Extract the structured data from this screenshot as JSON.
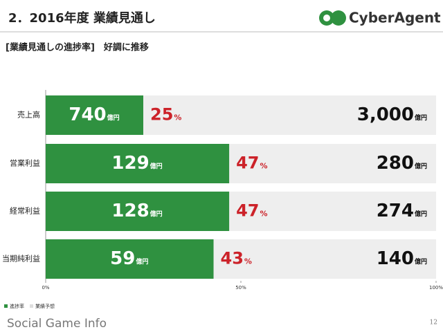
{
  "header": {
    "title": "2．2016年度 業績見通し",
    "subtitle": "[業績見通しの進捗率]　好調に推移",
    "logo": "CyberAgent",
    "footer": "Social Game Info",
    "page": "12"
  },
  "chart_data": {
    "type": "bar",
    "orientation": "horizontal",
    "categories": [
      "売上高",
      "営業利益",
      "経常利益",
      "当期純利益"
    ],
    "series": [
      {
        "name": "進捗率",
        "color": "#2f9140",
        "values": [
          25,
          47,
          47,
          43
        ]
      },
      {
        "name": "業績予想",
        "color": "#eeeeee",
        "values": [
          100,
          100,
          100,
          100
        ]
      }
    ],
    "value_unit": "%",
    "value_color": "#cc2229",
    "actuals": [
      740,
      129,
      128,
      59
    ],
    "forecasts": [
      3000,
      280,
      274,
      140
    ],
    "forecast_labels": [
      "3,000",
      "280",
      "274",
      "140"
    ],
    "amount_unit": "億円",
    "xlim": [
      0,
      100
    ],
    "xticks": [
      {
        "value": 0,
        "label": "0%"
      },
      {
        "value": 50,
        "label": "50%"
      },
      {
        "value": 100,
        "label": "100%"
      }
    ]
  }
}
